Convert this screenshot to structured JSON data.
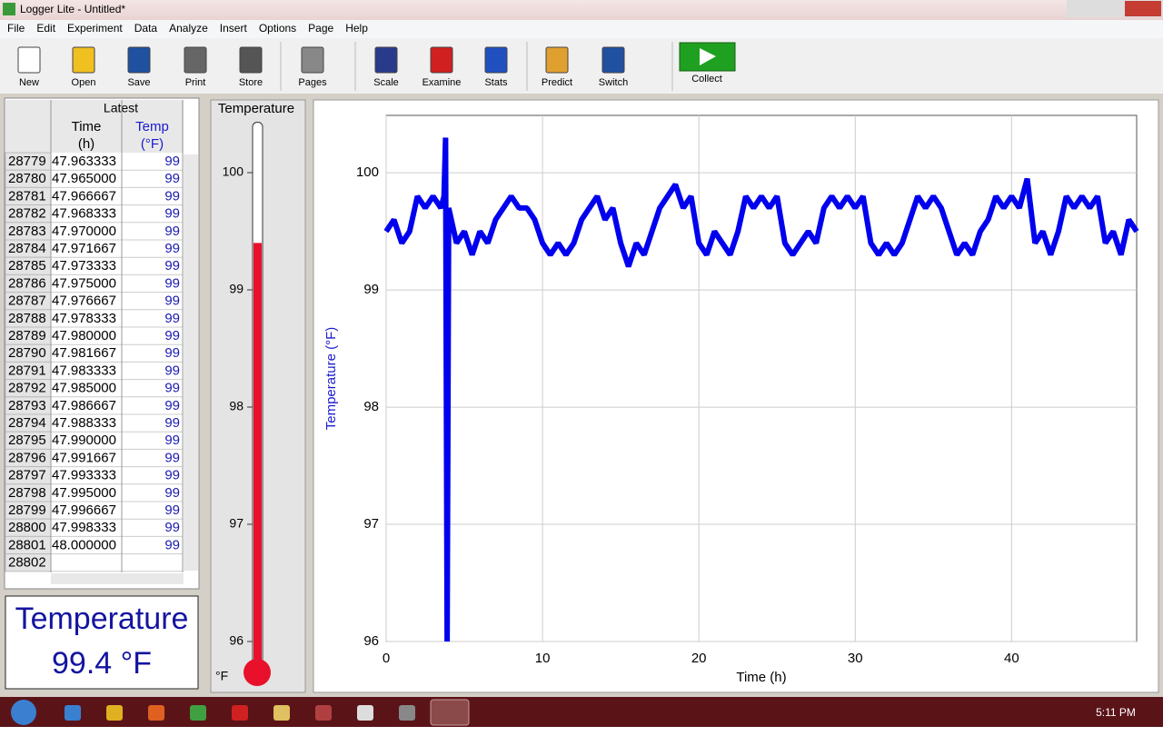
{
  "window": {
    "title": "Logger Lite - Untitled*"
  },
  "menu": [
    "File",
    "Edit",
    "Experiment",
    "Data",
    "Analyze",
    "Insert",
    "Options",
    "Page",
    "Help"
  ],
  "toolbar": [
    "New",
    "Open",
    "Save",
    "Print",
    "Store",
    "Pages",
    "Scale",
    "Examine",
    "Stats",
    "Predict",
    "Switch",
    "Collect"
  ],
  "table": {
    "group": "Latest",
    "columns": [
      {
        "name": "Time",
        "unit": "(h)"
      },
      {
        "name": "Temp",
        "unit": "(°F)"
      }
    ],
    "rows": [
      [
        28779,
        "47.963333",
        99
      ],
      [
        28780,
        "47.965000",
        99
      ],
      [
        28781,
        "47.966667",
        99
      ],
      [
        28782,
        "47.968333",
        99
      ],
      [
        28783,
        "47.970000",
        99
      ],
      [
        28784,
        "47.971667",
        99
      ],
      [
        28785,
        "47.973333",
        99
      ],
      [
        28786,
        "47.975000",
        99
      ],
      [
        28787,
        "47.976667",
        99
      ],
      [
        28788,
        "47.978333",
        99
      ],
      [
        28789,
        "47.980000",
        99
      ],
      [
        28790,
        "47.981667",
        99
      ],
      [
        28791,
        "47.983333",
        99
      ],
      [
        28792,
        "47.985000",
        99
      ],
      [
        28793,
        "47.986667",
        99
      ],
      [
        28794,
        "47.988333",
        99
      ],
      [
        28795,
        "47.990000",
        99
      ],
      [
        28796,
        "47.991667",
        99
      ],
      [
        28797,
        "47.993333",
        99
      ],
      [
        28798,
        "47.995000",
        99
      ],
      [
        28799,
        "47.996667",
        99
      ],
      [
        28800,
        "47.998333",
        99
      ],
      [
        28801,
        "48.000000",
        99
      ],
      [
        28802,
        null,
        null
      ]
    ]
  },
  "digital_display": {
    "label": "Temperature",
    "value_label": "99.4 °F"
  },
  "meter": {
    "title": "Temperature",
    "unit": "°F",
    "value": 99.4,
    "range": [
      96,
      100.43
    ],
    "ticks": [
      96,
      97,
      98,
      99,
      100
    ],
    "color": "#e8102a"
  },
  "chart_data": {
    "type": "line",
    "ylabel": "Temperature (°F)",
    "xlabel": "Time (h)",
    "xlim": [
      0,
      48
    ],
    "ylim": [
      96,
      100.49
    ],
    "xticks": [
      0,
      10,
      20,
      30,
      40
    ],
    "yticks": [
      96,
      97,
      98,
      99,
      100
    ],
    "grid": true,
    "x": [
      0,
      0.5,
      1,
      1.5,
      2,
      2.5,
      3,
      3.5,
      3.7,
      3.8,
      3.9,
      4.0,
      4.5,
      5,
      5.5,
      6,
      6.5,
      7,
      7.5,
      8,
      8.5,
      9,
      9.5,
      10,
      10.5,
      11,
      11.5,
      12,
      12.5,
      13,
      13.5,
      14,
      14.5,
      15,
      15.5,
      16,
      16.5,
      17,
      17.5,
      18,
      18.5,
      19,
      19.5,
      20,
      20.5,
      21,
      21.5,
      22,
      22.5,
      23,
      23.5,
      24,
      24.5,
      25,
      25.5,
      26,
      26.5,
      27,
      27.5,
      28,
      28.5,
      29,
      29.5,
      30,
      30.5,
      31,
      31.5,
      32,
      32.5,
      33,
      33.5,
      34,
      34.5,
      35,
      35.5,
      36,
      36.5,
      37,
      37.5,
      38,
      38.5,
      39,
      39.5,
      40,
      40.5,
      41,
      41.5,
      42,
      42.5,
      43,
      43.5,
      44,
      44.5,
      45,
      45.5,
      46,
      46.5,
      47,
      47.5,
      48
    ],
    "series": [
      {
        "color": "#0000ee",
        "values": [
          99.5,
          99.6,
          99.4,
          99.5,
          99.8,
          99.7,
          99.8,
          99.7,
          99.8,
          100.3,
          96.0,
          99.7,
          99.4,
          99.5,
          99.3,
          99.5,
          99.4,
          99.6,
          99.7,
          99.8,
          99.7,
          99.7,
          99.6,
          99.4,
          99.3,
          99.4,
          99.3,
          99.4,
          99.6,
          99.7,
          99.8,
          99.6,
          99.7,
          99.4,
          99.2,
          99.4,
          99.3,
          99.5,
          99.7,
          99.8,
          99.9,
          99.7,
          99.8,
          99.4,
          99.3,
          99.5,
          99.4,
          99.3,
          99.5,
          99.8,
          99.7,
          99.8,
          99.7,
          99.8,
          99.4,
          99.3,
          99.4,
          99.5,
          99.4,
          99.7,
          99.8,
          99.7,
          99.8,
          99.7,
          99.8,
          99.4,
          99.3,
          99.4,
          99.3,
          99.4,
          99.6,
          99.8,
          99.7,
          99.8,
          99.7,
          99.5,
          99.3,
          99.4,
          99.3,
          99.5,
          99.6,
          99.8,
          99.7,
          99.8,
          99.7,
          99.95,
          99.4,
          99.5,
          99.3,
          99.5,
          99.8,
          99.7,
          99.8,
          99.7,
          99.8,
          99.4,
          99.5,
          99.3,
          99.6,
          99.5
        ]
      }
    ]
  },
  "taskbar": {
    "clock": "5:11 PM"
  }
}
